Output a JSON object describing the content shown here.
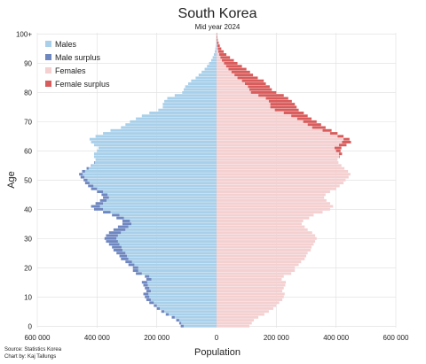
{
  "chart_data": {
    "type": "bar",
    "orientation": "horizontal",
    "title": "South Korea",
    "subtitle": "Mid year 2024",
    "xlabel": "Population",
    "ylabel": "Age",
    "xlim": [
      -600000,
      600000
    ],
    "ylim": [
      0,
      100
    ],
    "x_ticks": [
      -600000,
      -400000,
      -200000,
      0,
      200000,
      400000,
      600000
    ],
    "x_tick_labels": [
      "600 000",
      "400 000",
      "200 000",
      "0",
      "200 000",
      "400 000",
      "600 000"
    ],
    "y_ticks": [
      0,
      10,
      20,
      30,
      40,
      50,
      60,
      70,
      80,
      90,
      100
    ],
    "y_tick_labels": [
      "0",
      "10",
      "20",
      "30",
      "40",
      "50",
      "60",
      "70",
      "80",
      "90",
      "100+"
    ],
    "grid": true,
    "legend_position": "top-left",
    "legend": [
      {
        "label": "Males",
        "color": "#a9d0ea"
      },
      {
        "label": "Male surplus",
        "color": "#6f87c0"
      },
      {
        "label": "Females",
        "color": "#f4d0d1"
      },
      {
        "label": "Female surplus",
        "color": "#d95c5c"
      }
    ],
    "series": [
      {
        "name": "Males",
        "age": [
          0,
          1,
          2,
          3,
          4,
          5,
          6,
          7,
          8,
          9,
          10,
          11,
          12,
          13,
          14,
          15,
          16,
          17,
          18,
          19,
          20,
          21,
          22,
          23,
          24,
          25,
          26,
          27,
          28,
          29,
          30,
          31,
          32,
          33,
          34,
          35,
          36,
          37,
          38,
          39,
          40,
          41,
          42,
          43,
          44,
          45,
          46,
          47,
          48,
          49,
          50,
          51,
          52,
          53,
          54,
          55,
          56,
          57,
          58,
          59,
          60,
          61,
          62,
          63,
          64,
          65,
          66,
          67,
          68,
          69,
          70,
          71,
          72,
          73,
          74,
          75,
          76,
          77,
          78,
          79,
          80,
          81,
          82,
          83,
          84,
          85,
          86,
          87,
          88,
          89,
          90,
          91,
          92,
          93,
          94,
          95,
          96,
          97,
          98,
          99,
          100
        ],
        "values": [
          120000,
          125000,
          135000,
          150000,
          170000,
          185000,
          200000,
          210000,
          225000,
          235000,
          240000,
          245000,
          235000,
          240000,
          245000,
          250000,
          235000,
          240000,
          270000,
          280000,
          280000,
          295000,
          305000,
          320000,
          325000,
          335000,
          345000,
          350000,
          360000,
          370000,
          375000,
          370000,
          360000,
          345000,
          330000,
          315000,
          315000,
          335000,
          350000,
          380000,
          410000,
          420000,
          405000,
          390000,
          380000,
          385000,
          400000,
          420000,
          430000,
          440000,
          445000,
          455000,
          460000,
          450000,
          435000,
          420000,
          410000,
          405000,
          410000,
          410000,
          400000,
          395000,
          410000,
          420000,
          425000,
          405000,
          380000,
          355000,
          320000,
          305000,
          290000,
          270000,
          250000,
          225000,
          195000,
          180000,
          180000,
          175000,
          165000,
          140000,
          115000,
          110000,
          105000,
          95000,
          85000,
          70000,
          60000,
          50000,
          40000,
          32000,
          25000,
          18000,
          13000,
          9000,
          6000,
          4000,
          2500,
          1500,
          900,
          500,
          300
        ]
      },
      {
        "name": "Females",
        "age": [
          0,
          1,
          2,
          3,
          4,
          5,
          6,
          7,
          8,
          9,
          10,
          11,
          12,
          13,
          14,
          15,
          16,
          17,
          18,
          19,
          20,
          21,
          22,
          23,
          24,
          25,
          26,
          27,
          28,
          29,
          30,
          31,
          32,
          33,
          34,
          35,
          36,
          37,
          38,
          39,
          40,
          41,
          42,
          43,
          44,
          45,
          46,
          47,
          48,
          49,
          50,
          51,
          52,
          53,
          54,
          55,
          56,
          57,
          58,
          59,
          60,
          61,
          62,
          63,
          64,
          65,
          66,
          67,
          68,
          69,
          70,
          71,
          72,
          73,
          74,
          75,
          76,
          77,
          78,
          79,
          80,
          81,
          82,
          83,
          84,
          85,
          86,
          87,
          88,
          89,
          90,
          91,
          92,
          93,
          94,
          95,
          96,
          97,
          98,
          99,
          100
        ],
        "values": [
          110000,
          118000,
          125000,
          140000,
          160000,
          175000,
          190000,
          200000,
          210000,
          220000,
          225000,
          228000,
          220000,
          225000,
          230000,
          232000,
          218000,
          225000,
          250000,
          262000,
          262000,
          275000,
          283000,
          295000,
          300000,
          305000,
          315000,
          318000,
          325000,
          330000,
          335000,
          330000,
          320000,
          305000,
          295000,
          285000,
          290000,
          310000,
          325000,
          355000,
          380000,
          390000,
          380000,
          368000,
          360000,
          365000,
          380000,
          400000,
          412000,
          425000,
          432000,
          442000,
          448000,
          440000,
          428000,
          418000,
          408000,
          405000,
          412000,
          420000,
          415000,
          418000,
          435000,
          450000,
          445000,
          425000,
          405000,
          385000,
          365000,
          350000,
          335000,
          318000,
          305000,
          292000,
          275000,
          268000,
          262000,
          252000,
          240000,
          225000,
          200000,
          185000,
          178000,
          165000,
          158000,
          138000,
          122000,
          112000,
          100000,
          85000,
          70000,
          58000,
          45000,
          33000,
          24000,
          16000,
          11000,
          7000,
          4000,
          2500,
          1500
        ]
      }
    ],
    "source_lines": [
      "Source: Statistics Korea",
      "Chart by: Kaj Tallungs"
    ]
  }
}
